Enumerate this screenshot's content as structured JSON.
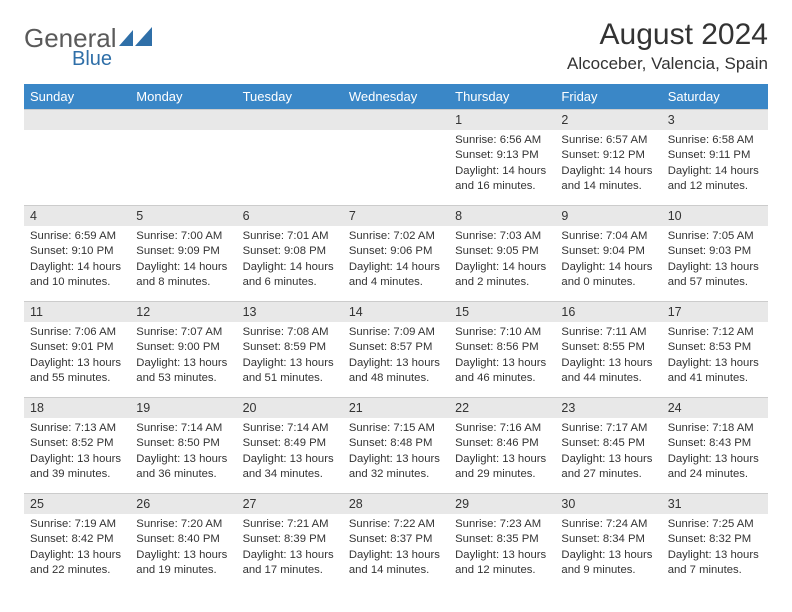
{
  "brand": {
    "part1": "General",
    "part2": "Blue"
  },
  "title": "August 2024",
  "location": "Alcoceber, Valencia, Spain",
  "colors": {
    "header_bg": "#3a87c7",
    "header_text": "#ffffff",
    "daynum_bg": "#e8e8e8",
    "text": "#333333",
    "logo_gray": "#5a5a5a",
    "logo_blue": "#2f6fa8"
  },
  "weekdays": [
    "Sunday",
    "Monday",
    "Tuesday",
    "Wednesday",
    "Thursday",
    "Friday",
    "Saturday"
  ],
  "weeks": [
    [
      null,
      null,
      null,
      null,
      {
        "n": "1",
        "sunrise": "6:56 AM",
        "sunset": "9:13 PM",
        "daylight": "14 hours and 16 minutes."
      },
      {
        "n": "2",
        "sunrise": "6:57 AM",
        "sunset": "9:12 PM",
        "daylight": "14 hours and 14 minutes."
      },
      {
        "n": "3",
        "sunrise": "6:58 AM",
        "sunset": "9:11 PM",
        "daylight": "14 hours and 12 minutes."
      }
    ],
    [
      {
        "n": "4",
        "sunrise": "6:59 AM",
        "sunset": "9:10 PM",
        "daylight": "14 hours and 10 minutes."
      },
      {
        "n": "5",
        "sunrise": "7:00 AM",
        "sunset": "9:09 PM",
        "daylight": "14 hours and 8 minutes."
      },
      {
        "n": "6",
        "sunrise": "7:01 AM",
        "sunset": "9:08 PM",
        "daylight": "14 hours and 6 minutes."
      },
      {
        "n": "7",
        "sunrise": "7:02 AM",
        "sunset": "9:06 PM",
        "daylight": "14 hours and 4 minutes."
      },
      {
        "n": "8",
        "sunrise": "7:03 AM",
        "sunset": "9:05 PM",
        "daylight": "14 hours and 2 minutes."
      },
      {
        "n": "9",
        "sunrise": "7:04 AM",
        "sunset": "9:04 PM",
        "daylight": "14 hours and 0 minutes."
      },
      {
        "n": "10",
        "sunrise": "7:05 AM",
        "sunset": "9:03 PM",
        "daylight": "13 hours and 57 minutes."
      }
    ],
    [
      {
        "n": "11",
        "sunrise": "7:06 AM",
        "sunset": "9:01 PM",
        "daylight": "13 hours and 55 minutes."
      },
      {
        "n": "12",
        "sunrise": "7:07 AM",
        "sunset": "9:00 PM",
        "daylight": "13 hours and 53 minutes."
      },
      {
        "n": "13",
        "sunrise": "7:08 AM",
        "sunset": "8:59 PM",
        "daylight": "13 hours and 51 minutes."
      },
      {
        "n": "14",
        "sunrise": "7:09 AM",
        "sunset": "8:57 PM",
        "daylight": "13 hours and 48 minutes."
      },
      {
        "n": "15",
        "sunrise": "7:10 AM",
        "sunset": "8:56 PM",
        "daylight": "13 hours and 46 minutes."
      },
      {
        "n": "16",
        "sunrise": "7:11 AM",
        "sunset": "8:55 PM",
        "daylight": "13 hours and 44 minutes."
      },
      {
        "n": "17",
        "sunrise": "7:12 AM",
        "sunset": "8:53 PM",
        "daylight": "13 hours and 41 minutes."
      }
    ],
    [
      {
        "n": "18",
        "sunrise": "7:13 AM",
        "sunset": "8:52 PM",
        "daylight": "13 hours and 39 minutes."
      },
      {
        "n": "19",
        "sunrise": "7:14 AM",
        "sunset": "8:50 PM",
        "daylight": "13 hours and 36 minutes."
      },
      {
        "n": "20",
        "sunrise": "7:14 AM",
        "sunset": "8:49 PM",
        "daylight": "13 hours and 34 minutes."
      },
      {
        "n": "21",
        "sunrise": "7:15 AM",
        "sunset": "8:48 PM",
        "daylight": "13 hours and 32 minutes."
      },
      {
        "n": "22",
        "sunrise": "7:16 AM",
        "sunset": "8:46 PM",
        "daylight": "13 hours and 29 minutes."
      },
      {
        "n": "23",
        "sunrise": "7:17 AM",
        "sunset": "8:45 PM",
        "daylight": "13 hours and 27 minutes."
      },
      {
        "n": "24",
        "sunrise": "7:18 AM",
        "sunset": "8:43 PM",
        "daylight": "13 hours and 24 minutes."
      }
    ],
    [
      {
        "n": "25",
        "sunrise": "7:19 AM",
        "sunset": "8:42 PM",
        "daylight": "13 hours and 22 minutes."
      },
      {
        "n": "26",
        "sunrise": "7:20 AM",
        "sunset": "8:40 PM",
        "daylight": "13 hours and 19 minutes."
      },
      {
        "n": "27",
        "sunrise": "7:21 AM",
        "sunset": "8:39 PM",
        "daylight": "13 hours and 17 minutes."
      },
      {
        "n": "28",
        "sunrise": "7:22 AM",
        "sunset": "8:37 PM",
        "daylight": "13 hours and 14 minutes."
      },
      {
        "n": "29",
        "sunrise": "7:23 AM",
        "sunset": "8:35 PM",
        "daylight": "13 hours and 12 minutes."
      },
      {
        "n": "30",
        "sunrise": "7:24 AM",
        "sunset": "8:34 PM",
        "daylight": "13 hours and 9 minutes."
      },
      {
        "n": "31",
        "sunrise": "7:25 AM",
        "sunset": "8:32 PM",
        "daylight": "13 hours and 7 minutes."
      }
    ]
  ],
  "labels": {
    "sunrise": "Sunrise:",
    "sunset": "Sunset:",
    "daylight": "Daylight:"
  }
}
